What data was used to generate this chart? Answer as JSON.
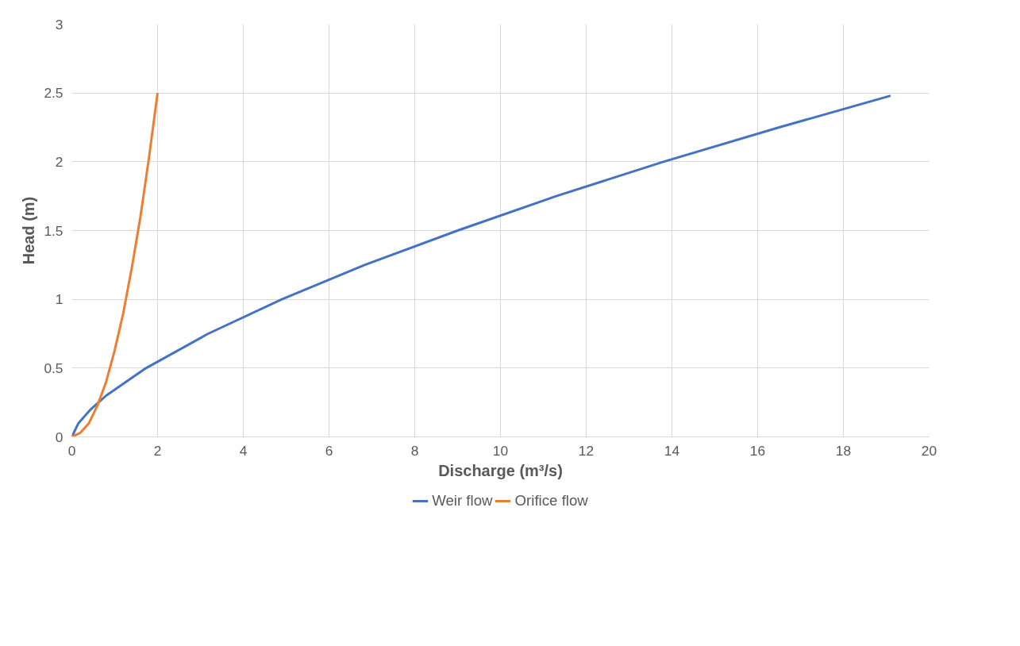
{
  "chart_data": {
    "type": "line",
    "xlabel": "Discharge (m³/s)",
    "ylabel": "Head (m)",
    "xlim": [
      0,
      20
    ],
    "ylim": [
      0,
      3
    ],
    "xticks": [
      0,
      2,
      4,
      6,
      8,
      10,
      12,
      14,
      16,
      18,
      20
    ],
    "yticks": [
      0,
      0.5,
      1,
      1.5,
      2,
      2.5,
      3
    ],
    "grid": true,
    "legend": "bottom",
    "marker": "none",
    "line_style": "solid",
    "series": [
      {
        "name": "Weir flow",
        "color": "#4472c4",
        "x": [
          0,
          0.155,
          0.44,
          0.8,
          1.73,
          3.18,
          4.9,
          6.83,
          9.0,
          11.3,
          13.8,
          16.5,
          19.1
        ],
        "values": [
          0,
          0.1,
          0.2,
          0.3,
          0.5,
          0.75,
          1.0,
          1.25,
          1.5,
          1.75,
          2.0,
          2.25,
          2.48
        ]
      },
      {
        "name": "Orifice flow",
        "color": "#ed7d31",
        "x": [
          0,
          0.2,
          0.4,
          0.6,
          0.8,
          1.0,
          1.2,
          1.4,
          1.6,
          1.8,
          2.0
        ],
        "values": [
          0,
          0.03,
          0.1,
          0.23,
          0.4,
          0.63,
          0.9,
          1.23,
          1.6,
          2.03,
          2.5
        ]
      }
    ]
  }
}
